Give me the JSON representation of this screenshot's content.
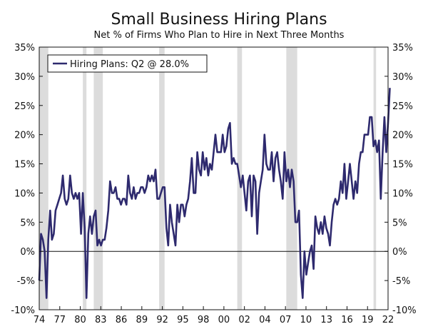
{
  "chart_data": {
    "type": "line",
    "title": "Small Business Hiring Plans",
    "subtitle": "Net % of Firms Who Plan to Hire in Next Three Months",
    "xlabel": "",
    "ylabel": "",
    "xlim": [
      1974.0,
      2022.0
    ],
    "ylim": [
      -10,
      35
    ],
    "y_ticks": [
      "-10%",
      "-5%",
      "0%",
      "5%",
      "10%",
      "15%",
      "20%",
      "25%",
      "30%",
      "35%"
    ],
    "x_ticks": [
      "74",
      "77",
      "80",
      "83",
      "86",
      "89",
      "92",
      "95",
      "98",
      "00",
      "02",
      "04",
      "07",
      "10",
      "13",
      "16",
      "19",
      "22"
    ],
    "legend": {
      "label": "Hiring Plans: Q2 @ 28.0%",
      "position": "top-left"
    },
    "grid": false,
    "zero_line": true,
    "series": [
      {
        "name": "Hiring Plans: Q2 @ 28.0%",
        "color": "#2e2a6e",
        "points": [
          [
            1974.0,
            -5
          ],
          [
            1974.25,
            3
          ],
          [
            1974.5,
            2
          ],
          [
            1974.75,
            0
          ],
          [
            1975.0,
            -8
          ],
          [
            1975.25,
            2
          ],
          [
            1975.5,
            7
          ],
          [
            1975.75,
            2
          ],
          [
            1976.0,
            3
          ],
          [
            1976.25,
            7
          ],
          [
            1976.5,
            8
          ],
          [
            1976.75,
            9
          ],
          [
            1977.0,
            10
          ],
          [
            1977.25,
            13
          ],
          [
            1977.5,
            9
          ],
          [
            1977.75,
            8
          ],
          [
            1978.0,
            9
          ],
          [
            1978.25,
            13
          ],
          [
            1978.5,
            10
          ],
          [
            1978.75,
            9
          ],
          [
            1979.0,
            10
          ],
          [
            1979.25,
            9
          ],
          [
            1979.5,
            10
          ],
          [
            1979.75,
            3
          ],
          [
            1980.0,
            10
          ],
          [
            1980.25,
            4
          ],
          [
            1980.5,
            -8
          ],
          [
            1980.75,
            3
          ],
          [
            1981.0,
            6
          ],
          [
            1981.25,
            3
          ],
          [
            1981.5,
            6
          ],
          [
            1981.75,
            7
          ],
          [
            1982.0,
            1
          ],
          [
            1982.25,
            2
          ],
          [
            1982.5,
            1
          ],
          [
            1982.75,
            2
          ],
          [
            1983.0,
            2
          ],
          [
            1983.25,
            4
          ],
          [
            1983.5,
            7
          ],
          [
            1983.75,
            12
          ],
          [
            1984.0,
            10
          ],
          [
            1984.25,
            10
          ],
          [
            1984.5,
            11
          ],
          [
            1984.75,
            9
          ],
          [
            1985.0,
            9
          ],
          [
            1985.25,
            8
          ],
          [
            1985.5,
            9
          ],
          [
            1985.75,
            9
          ],
          [
            1986.0,
            8
          ],
          [
            1986.25,
            13
          ],
          [
            1986.5,
            10
          ],
          [
            1986.75,
            9
          ],
          [
            1987.0,
            11
          ],
          [
            1987.25,
            9
          ],
          [
            1987.5,
            10
          ],
          [
            1987.75,
            10
          ],
          [
            1988.0,
            11
          ],
          [
            1988.25,
            11
          ],
          [
            1988.5,
            10
          ],
          [
            1988.75,
            11
          ],
          [
            1989.0,
            13
          ],
          [
            1989.25,
            12
          ],
          [
            1989.5,
            13
          ],
          [
            1989.75,
            12
          ],
          [
            1990.0,
            14
          ],
          [
            1990.25,
            9
          ],
          [
            1990.5,
            9
          ],
          [
            1990.75,
            10
          ],
          [
            1991.0,
            11
          ],
          [
            1991.25,
            11
          ],
          [
            1991.5,
            4
          ],
          [
            1991.75,
            1
          ],
          [
            1992.0,
            8
          ],
          [
            1992.25,
            5
          ],
          [
            1992.5,
            3
          ],
          [
            1992.75,
            1
          ],
          [
            1993.0,
            8
          ],
          [
            1993.25,
            5
          ],
          [
            1993.5,
            8
          ],
          [
            1993.75,
            8
          ],
          [
            1994.0,
            6
          ],
          [
            1994.25,
            8
          ],
          [
            1994.5,
            9
          ],
          [
            1994.75,
            12
          ],
          [
            1995.0,
            16
          ],
          [
            1995.25,
            10
          ],
          [
            1995.5,
            10
          ],
          [
            1995.75,
            17
          ],
          [
            1996.0,
            14
          ],
          [
            1996.25,
            13
          ],
          [
            1996.5,
            17
          ],
          [
            1996.75,
            14
          ],
          [
            1997.0,
            16
          ],
          [
            1997.25,
            13
          ],
          [
            1997.5,
            15
          ],
          [
            1997.75,
            14
          ],
          [
            1998.0,
            17
          ],
          [
            1998.25,
            20
          ],
          [
            1998.5,
            17
          ],
          [
            1998.75,
            17
          ],
          [
            1999.0,
            17
          ],
          [
            1999.25,
            20
          ],
          [
            1999.5,
            17
          ],
          [
            1999.75,
            18
          ],
          [
            2000.0,
            21
          ],
          [
            2000.25,
            22
          ],
          [
            2000.5,
            15
          ],
          [
            2000.75,
            16
          ],
          [
            2001.0,
            15
          ],
          [
            2001.25,
            15
          ],
          [
            2001.5,
            13
          ],
          [
            2001.75,
            11
          ],
          [
            2002.0,
            13
          ],
          [
            2002.25,
            10
          ],
          [
            2002.5,
            7
          ],
          [
            2002.75,
            12
          ],
          [
            2003.0,
            13
          ],
          [
            2003.25,
            6
          ],
          [
            2003.5,
            13
          ],
          [
            2003.75,
            12
          ],
          [
            2004.0,
            3
          ],
          [
            2004.25,
            10
          ],
          [
            2004.5,
            12
          ],
          [
            2004.75,
            14
          ],
          [
            2005.0,
            20
          ],
          [
            2005.25,
            15
          ],
          [
            2005.5,
            14
          ],
          [
            2005.75,
            14
          ],
          [
            2006.0,
            17
          ],
          [
            2006.25,
            12
          ],
          [
            2006.5,
            16
          ],
          [
            2006.75,
            17
          ],
          [
            2007.0,
            14
          ],
          [
            2007.25,
            12
          ],
          [
            2007.5,
            9
          ],
          [
            2007.75,
            17
          ],
          [
            2008.0,
            12
          ],
          [
            2008.25,
            14
          ],
          [
            2008.5,
            11
          ],
          [
            2008.75,
            14
          ],
          [
            2009.0,
            12
          ],
          [
            2009.25,
            5
          ],
          [
            2009.5,
            5
          ],
          [
            2009.75,
            7
          ],
          [
            2010.0,
            -4
          ],
          [
            2010.25,
            -8
          ],
          [
            2010.5,
            0
          ],
          [
            2010.75,
            -4
          ],
          [
            2011.0,
            -2
          ],
          [
            2011.25,
            0
          ],
          [
            2011.5,
            1
          ],
          [
            2011.75,
            -3
          ],
          [
            2012.0,
            6
          ],
          [
            2012.25,
            4
          ],
          [
            2012.5,
            3
          ],
          [
            2012.75,
            5
          ],
          [
            2013.0,
            3
          ],
          [
            2013.25,
            6
          ],
          [
            2013.5,
            4
          ],
          [
            2013.75,
            3
          ],
          [
            2014.0,
            1
          ],
          [
            2014.25,
            5
          ],
          [
            2014.5,
            8
          ],
          [
            2014.75,
            9
          ],
          [
            2015.0,
            8
          ],
          [
            2015.25,
            9
          ],
          [
            2015.5,
            12
          ],
          [
            2015.75,
            10
          ],
          [
            2016.0,
            15
          ],
          [
            2016.25,
            9
          ],
          [
            2016.5,
            12
          ],
          [
            2016.75,
            15
          ],
          [
            2017.0,
            12
          ],
          [
            2017.25,
            9
          ],
          [
            2017.5,
            12
          ],
          [
            2017.75,
            10
          ],
          [
            2018.0,
            15
          ],
          [
            2018.25,
            17
          ],
          [
            2018.5,
            17
          ],
          [
            2018.75,
            20
          ],
          [
            2019.0,
            20
          ],
          [
            2019.25,
            20
          ],
          [
            2019.5,
            23
          ],
          [
            2019.75,
            23
          ],
          [
            2020.0,
            18
          ],
          [
            2020.25,
            19
          ],
          [
            2020.5,
            17
          ],
          [
            2020.75,
            19
          ],
          [
            2021.0,
            9
          ],
          [
            2021.25,
            17
          ],
          [
            2021.5,
            23
          ],
          [
            2021.75,
            17
          ],
          [
            2022.0,
            22
          ],
          [
            2022.25,
            28
          ]
        ]
      }
    ],
    "recessions": [
      [
        1974.0,
        1975.25
      ],
      [
        1980.0,
        1980.5
      ],
      [
        1981.5,
        1982.75
      ],
      [
        1990.5,
        1991.25
      ],
      [
        2001.25,
        2001.9
      ],
      [
        2008.0,
        2009.5
      ],
      [
        2020.0,
        2020.35
      ]
    ],
    "colors": {
      "line": "#2e2a6e",
      "recession": "#dcdcdc",
      "axis": "#111111"
    }
  }
}
